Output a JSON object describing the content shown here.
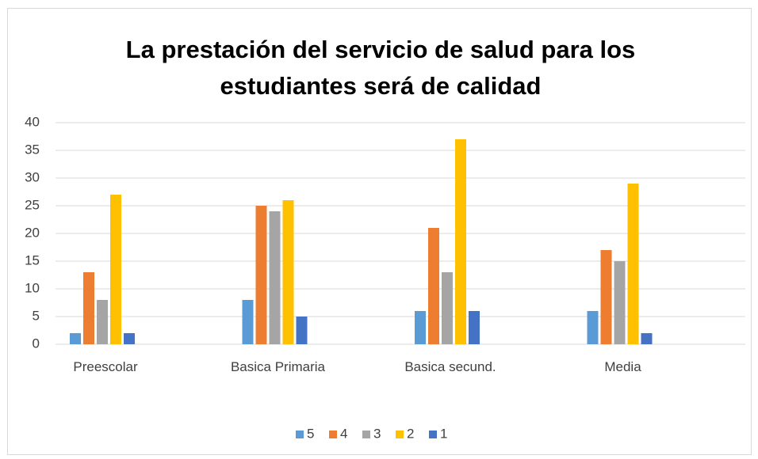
{
  "chart_data": {
    "type": "bar",
    "title": "La prestación del servicio de salud para los estudiantes será de calidad",
    "categories": [
      "Preescolar",
      "Basica Primaria",
      "Basica secund.",
      "Media"
    ],
    "series": [
      {
        "name": "5",
        "color": "#5b9bd5",
        "values": [
          2,
          8,
          6,
          6
        ]
      },
      {
        "name": "4",
        "color": "#ed7d31",
        "values": [
          13,
          25,
          21,
          17
        ]
      },
      {
        "name": "3",
        "color": "#a5a5a5",
        "values": [
          8,
          24,
          13,
          15
        ]
      },
      {
        "name": "2",
        "color": "#ffc000",
        "values": [
          27,
          26,
          37,
          29
        ]
      },
      {
        "name": "1",
        "color": "#4472c4",
        "values": [
          2,
          5,
          6,
          2
        ]
      }
    ],
    "ylim": [
      0,
      40
    ],
    "yticks": [
      0,
      5,
      10,
      15,
      20,
      25,
      30,
      35,
      40
    ],
    "grid": true,
    "legend": "bottom"
  }
}
